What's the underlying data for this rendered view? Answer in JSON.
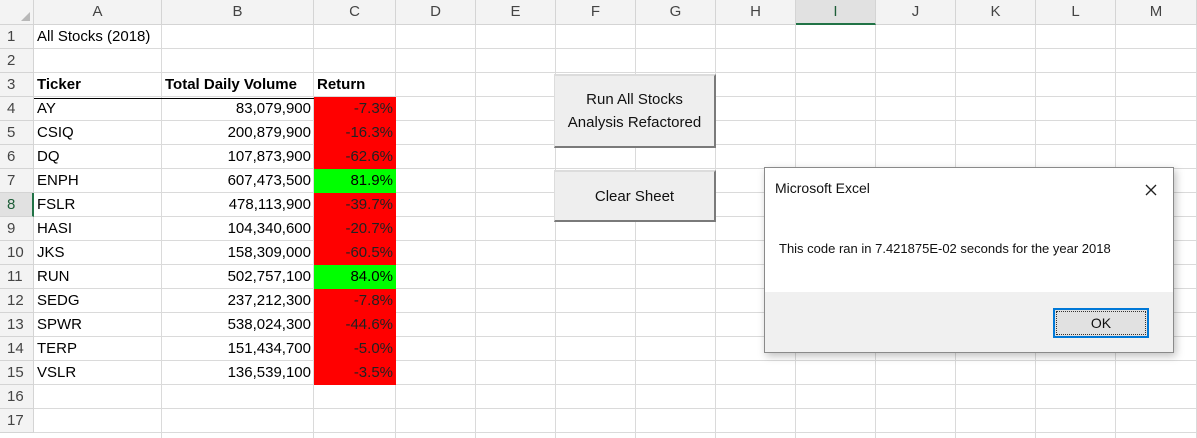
{
  "sheet": {
    "columns": [
      "A",
      "B",
      "C",
      "D",
      "E",
      "F",
      "G",
      "H",
      "I",
      "J",
      "K",
      "L",
      "M"
    ],
    "selected_column": "I",
    "rows": [
      "1",
      "2",
      "3",
      "4",
      "5",
      "6",
      "7",
      "8",
      "9",
      "10",
      "11",
      "12",
      "13",
      "14",
      "15",
      "16",
      "17"
    ],
    "selected_row": "8",
    "title": "All Stocks (2018)",
    "headers": {
      "ticker": "Ticker",
      "volume": "Total Daily Volume",
      "return": "Return"
    },
    "data": [
      {
        "ticker": "AY",
        "volume": "83,079,900",
        "return": "-7.3%",
        "positive": false
      },
      {
        "ticker": "CSIQ",
        "volume": "200,879,900",
        "return": "-16.3%",
        "positive": false
      },
      {
        "ticker": "DQ",
        "volume": "107,873,900",
        "return": "-62.6%",
        "positive": false
      },
      {
        "ticker": "ENPH",
        "volume": "607,473,500",
        "return": "81.9%",
        "positive": true
      },
      {
        "ticker": "FSLR",
        "volume": "478,113,900",
        "return": "-39.7%",
        "positive": false
      },
      {
        "ticker": "HASI",
        "volume": "104,340,600",
        "return": "-20.7%",
        "positive": false
      },
      {
        "ticker": "JKS",
        "volume": "158,309,000",
        "return": "-60.5%",
        "positive": false
      },
      {
        "ticker": "RUN",
        "volume": "502,757,100",
        "return": "84.0%",
        "positive": true
      },
      {
        "ticker": "SEDG",
        "volume": "237,212,300",
        "return": "-7.8%",
        "positive": false
      },
      {
        "ticker": "SPWR",
        "volume": "538,024,300",
        "return": "-44.6%",
        "positive": false
      },
      {
        "ticker": "TERP",
        "volume": "151,434,700",
        "return": "-5.0%",
        "positive": false
      },
      {
        "ticker": "VSLR",
        "volume": "136,539,100",
        "return": "-3.5%",
        "positive": false
      }
    ]
  },
  "buttons": {
    "run_line1": "Run All Stocks",
    "run_line2": "Analysis Refactored",
    "clear": "Clear Sheet"
  },
  "dialog": {
    "title": "Microsoft Excel",
    "message": "This code ran in 7.421875E-02 seconds for the year 2018",
    "ok": "OK",
    "close_icon": "close-icon"
  },
  "colors": {
    "negative_fill": "#ff0000",
    "positive_fill": "#00ff00",
    "negative_text": "#222222",
    "positive_text": "#000000",
    "selection_accent": "#217346",
    "dialog_focus": "#0078d7"
  }
}
